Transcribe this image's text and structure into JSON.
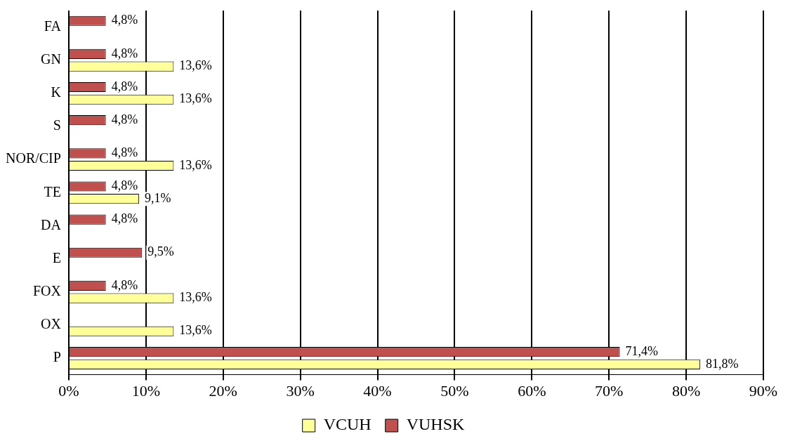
{
  "chart_data": {
    "type": "bar",
    "orientation": "horizontal",
    "categories": [
      "FA",
      "GN",
      "K",
      "S",
      "NOR/CIP",
      "TE",
      "DA",
      "E",
      "FOX",
      "OX",
      "P"
    ],
    "series": [
      {
        "name": "VUHSK",
        "color": "#c0504d",
        "values": [
          4.8,
          4.8,
          4.8,
          4.8,
          4.8,
          4.8,
          4.8,
          9.5,
          4.8,
          null,
          71.4
        ],
        "value_labels": [
          "4,8%",
          "4,8%",
          "4,8%",
          "4,8%",
          "4,8%",
          "4,8%",
          "4,8%",
          "9,5%",
          "4,8%",
          null,
          "71,4%"
        ]
      },
      {
        "name": "VCUH",
        "color": "#ffff99",
        "values": [
          null,
          13.6,
          13.6,
          null,
          13.6,
          9.1,
          null,
          null,
          13.6,
          13.6,
          81.8
        ],
        "value_labels": [
          null,
          "13,6%",
          "13,6%",
          null,
          "13,6%",
          "9,1%",
          null,
          null,
          "13,6%",
          "13,6%",
          "81,8%"
        ]
      }
    ],
    "xlim": [
      0,
      90
    ],
    "xticks": [
      {
        "value": 0,
        "label": "0%"
      },
      {
        "value": 10,
        "label": "10%"
      },
      {
        "value": 20,
        "label": "20%"
      },
      {
        "value": 30,
        "label": "30%"
      },
      {
        "value": 40,
        "label": "40%"
      },
      {
        "value": 50,
        "label": "50%"
      },
      {
        "value": 60,
        "label": "60%"
      },
      {
        "value": 70,
        "label": "70%"
      },
      {
        "value": 80,
        "label": "80%"
      },
      {
        "value": 90,
        "label": "90%"
      }
    ],
    "grid": "x",
    "legend": "bottom"
  }
}
